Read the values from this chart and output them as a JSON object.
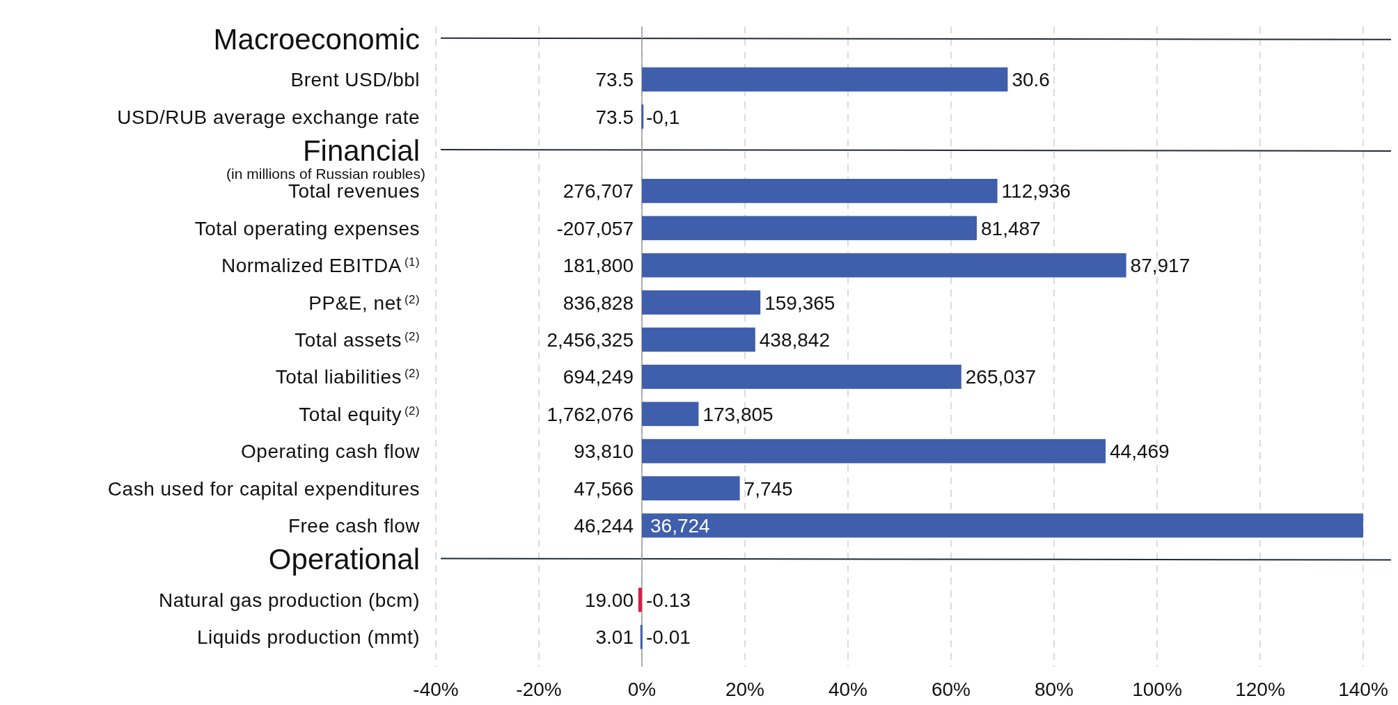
{
  "chart_data": {
    "type": "bar",
    "orientation": "horizontal",
    "categories": [
      null,
      "Brent USD/bbl",
      "USD/RUB average exchange rate",
      null,
      "Total revenues",
      "Total operating expenses",
      "Normalized EBITDA$^{(1)}$",
      "PP&E, net$^{(2)}$",
      "Total assets$^{(2)}$",
      "Total liabilities$^{(2)}$",
      "Total equity$^{(2)}$",
      "Operating cash flow",
      "Cash used for capital expenditures",
      "Free cash flow",
      null,
      "Natural gas production (bcm)",
      "Liquids production (mmt)"
    ],
    "values": [
      null,
      71,
      -0.1,
      null,
      69,
      65,
      94,
      23,
      22,
      62,
      11,
      90,
      19,
      140,
      null,
      -0.7,
      -0.3
    ],
    "colors": [
      "#1f2a3a",
      "#3f5eab",
      "#3f5eab",
      "#1f2a3a",
      "#3f5eab",
      "#3f5eab",
      "#3f5eab",
      "#3f5eab",
      "#3f5eab",
      "#3f5eab",
      "#3f5eab",
      "#3f5eab",
      "#3f5eab",
      "#3f5eab",
      "#1f2a3a",
      "#d6204a",
      "#3f5eab"
    ],
    "xlim": [
      -40,
      140
    ],
    "xticks": [
      {
        "value": -40,
        "label": "-40%"
      },
      {
        "value": -20,
        "label": "-20%"
      },
      {
        "value": 0,
        "label": "0%"
      },
      {
        "value": 20,
        "label": "20%"
      },
      {
        "value": 40,
        "label": "40%"
      },
      {
        "value": 60,
        "label": "60%"
      },
      {
        "value": 80,
        "label": "80%"
      },
      {
        "value": 100,
        "label": "100%"
      },
      {
        "value": 120,
        "label": "120%"
      },
      {
        "value": 140,
        "label": "140%"
      }
    ],
    "grid": "x",
    "annotations": [
      "Macroeconomic",
      "73.5",
      "30.6",
      "73.5",
      "-0,1",
      "Financial",
      "(in millions of Russian roubles)",
      "276,707",
      "112,936",
      "-207,057",
      "81,487",
      "181,800",
      "87,917",
      "836,828",
      "159,365",
      "2,456,325",
      "438,842",
      "694,249",
      "265,037",
      "1,762,076",
      "173,805",
      "93,810",
      "44,469",
      "47,566",
      "7,745",
      "46,244",
      "36,724",
      "Operational",
      "19.00",
      "-0.13",
      "3.01",
      "-0.01"
    ]
  }
}
